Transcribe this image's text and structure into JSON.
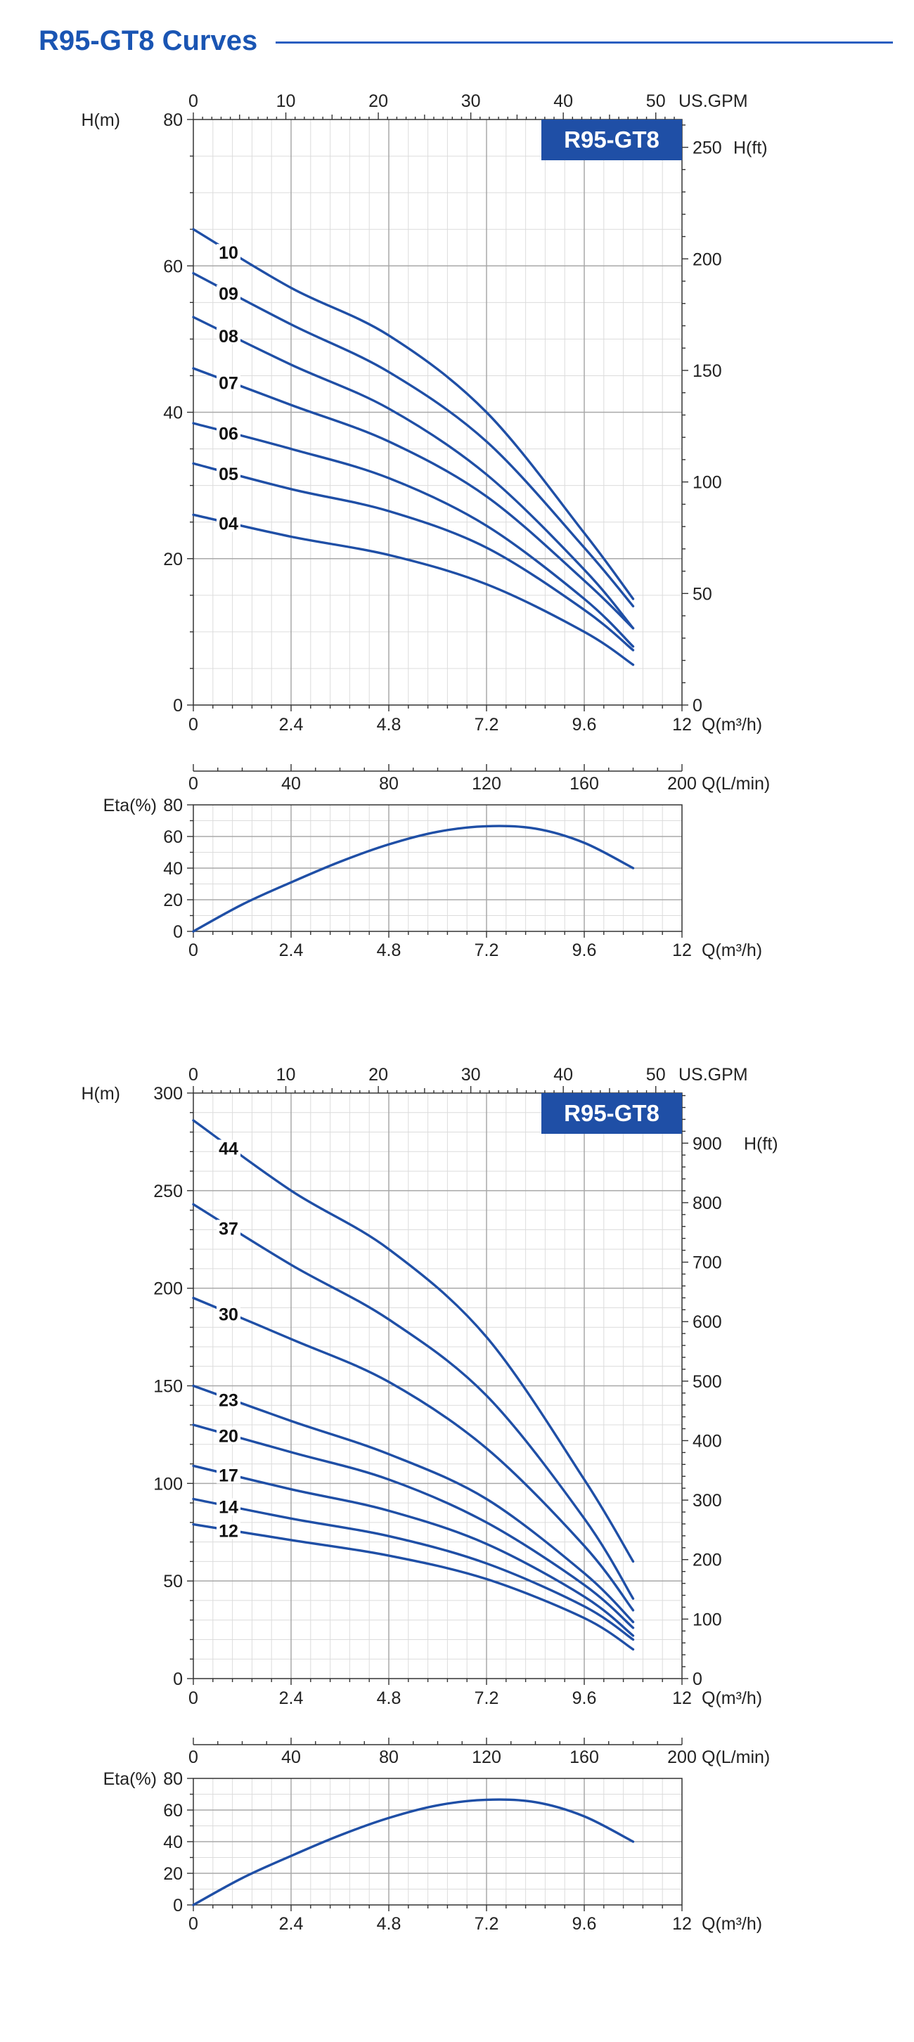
{
  "title": "R95-GT8 Curves",
  "colors": {
    "accent": "#1a55b3",
    "curve": "#1f4fa6",
    "badge": "#1f4fa6",
    "grid_major": "#a8a8a8",
    "grid_minor": "#dcdcdc"
  },
  "chart_data": [
    {
      "type": "line",
      "name": "head-curves-group-1",
      "badge": "R95-GT8",
      "ylabel": "H(m)",
      "y2label": "H(ft)",
      "xlabel": "Q(m³/h)",
      "x_top_label": "US.GPM",
      "xlim": [
        0,
        12
      ],
      "ylim": [
        0,
        80
      ],
      "y2lim": [
        0,
        262.47
      ],
      "xticks": [
        "0",
        "2.4",
        "4.8",
        "7.2",
        "9.6",
        "12"
      ],
      "x_top_ticks": [
        "0",
        "10",
        "20",
        "30",
        "40",
        "50"
      ],
      "yticks": [
        "0",
        "20",
        "40",
        "60",
        "80"
      ],
      "y2ticks": [
        "0",
        "50",
        "100",
        "150",
        "200",
        "250"
      ],
      "series": [
        {
          "name": "10",
          "x": [
            0,
            2.4,
            4.8,
            7.2,
            9.6,
            10.8
          ],
          "values": [
            65,
            57,
            50.5,
            40,
            23.5,
            14.5
          ]
        },
        {
          "name": "09",
          "x": [
            0,
            2.4,
            4.8,
            7.2,
            9.6,
            10.8
          ],
          "values": [
            59,
            52,
            45.5,
            36,
            21.5,
            13.5
          ]
        },
        {
          "name": "08",
          "x": [
            0,
            2.4,
            4.8,
            7.2,
            9.6,
            10.8
          ],
          "values": [
            53,
            46.5,
            40.5,
            31.5,
            18.5,
            10.5
          ]
        },
        {
          "name": "07",
          "x": [
            0,
            2.4,
            4.8,
            7.2,
            9.6,
            10.8
          ],
          "values": [
            46,
            41,
            36,
            28.5,
            17,
            10.5
          ]
        },
        {
          "name": "06",
          "x": [
            0,
            2.4,
            4.8,
            7.2,
            9.6,
            10.8
          ],
          "values": [
            38.5,
            35,
            31,
            24.5,
            14.5,
            8
          ]
        },
        {
          "name": "05",
          "x": [
            0,
            2.4,
            4.8,
            7.2,
            9.6,
            10.8
          ],
          "values": [
            33,
            29.5,
            26.5,
            21.5,
            13,
            7.5
          ]
        },
        {
          "name": "04",
          "x": [
            0,
            2.4,
            4.8,
            7.2,
            9.6,
            10.8
          ],
          "values": [
            26,
            23,
            20.5,
            16.5,
            10,
            5.5
          ]
        }
      ]
    },
    {
      "type": "line",
      "name": "efficiency-group-1",
      "ylabel": "Eta(%)",
      "xlabel": "Q(m³/h)",
      "x_top_label": "Q(L/min)",
      "xlim": [
        0,
        12
      ],
      "ylim": [
        0,
        80
      ],
      "xticks": [
        "0",
        "2.4",
        "4.8",
        "7.2",
        "9.6",
        "12"
      ],
      "x_top_ticks": [
        "0",
        "40",
        "80",
        "120",
        "160",
        "200"
      ],
      "yticks": [
        "0",
        "20",
        "40",
        "60",
        "80"
      ],
      "series": [
        {
          "name": "Eta",
          "x": [
            0,
            1.2,
            2.4,
            3.6,
            4.8,
            6.0,
            7.2,
            8.4,
            9.6,
            10.8
          ],
          "values": [
            0,
            17,
            31,
            44,
            55,
            63,
            66.5,
            65,
            56,
            40
          ]
        }
      ]
    },
    {
      "type": "line",
      "name": "head-curves-group-2",
      "badge": "R95-GT8",
      "ylabel": "H(m)",
      "y2label": "H(ft)",
      "xlabel": "Q(m³/h)",
      "x_top_label": "US.GPM",
      "xlim": [
        0,
        12
      ],
      "ylim": [
        0,
        300
      ],
      "y2lim": [
        0,
        984.25
      ],
      "xticks": [
        "0",
        "2.4",
        "4.8",
        "7.2",
        "9.6",
        "12"
      ],
      "x_top_ticks": [
        "0",
        "10",
        "20",
        "30",
        "40",
        "50"
      ],
      "yticks": [
        "0",
        "50",
        "100",
        "150",
        "200",
        "250",
        "300"
      ],
      "y2ticks": [
        "0",
        "100",
        "200",
        "300",
        "400",
        "500",
        "600",
        "700",
        "800",
        "900"
      ],
      "series": [
        {
          "name": "44",
          "x": [
            0,
            2.4,
            4.8,
            7.2,
            9.6,
            10.8
          ],
          "values": [
            286,
            250,
            220,
            175,
            102,
            60
          ]
        },
        {
          "name": "37",
          "x": [
            0,
            2.4,
            4.8,
            7.2,
            9.6,
            10.8
          ],
          "values": [
            243,
            212,
            184,
            145,
            82,
            41
          ]
        },
        {
          "name": "30",
          "x": [
            0,
            2.4,
            4.8,
            7.2,
            9.6,
            10.8
          ],
          "values": [
            195,
            174,
            152,
            118,
            68,
            35
          ]
        },
        {
          "name": "23",
          "x": [
            0,
            2.4,
            4.8,
            7.2,
            9.6,
            10.8
          ],
          "values": [
            150,
            132,
            115,
            92,
            54,
            29
          ]
        },
        {
          "name": "20",
          "x": [
            0,
            2.4,
            4.8,
            7.2,
            9.6,
            10.8
          ],
          "values": [
            130,
            116,
            102,
            80,
            48,
            26
          ]
        },
        {
          "name": "17",
          "x": [
            0,
            2.4,
            4.8,
            7.2,
            9.6,
            10.8
          ],
          "values": [
            109,
            97,
            86,
            69,
            42,
            22
          ]
        },
        {
          "name": "14",
          "x": [
            0,
            2.4,
            4.8,
            7.2,
            9.6,
            10.8
          ],
          "values": [
            92,
            82,
            73,
            59,
            37,
            20
          ]
        },
        {
          "name": "12",
          "x": [
            0,
            2.4,
            4.8,
            7.2,
            9.6,
            10.8
          ],
          "values": [
            79,
            71,
            63,
            51,
            31,
            15
          ]
        }
      ]
    },
    {
      "type": "line",
      "name": "efficiency-group-2",
      "ylabel": "Eta(%)",
      "xlabel": "Q(m³/h)",
      "x_top_label": "Q(L/min)",
      "xlim": [
        0,
        12
      ],
      "ylim": [
        0,
        80
      ],
      "xticks": [
        "0",
        "2.4",
        "4.8",
        "7.2",
        "9.6",
        "12"
      ],
      "x_top_ticks": [
        "0",
        "40",
        "80",
        "120",
        "160",
        "200"
      ],
      "yticks": [
        "0",
        "20",
        "40",
        "60",
        "80"
      ],
      "series": [
        {
          "name": "Eta",
          "x": [
            0,
            1.2,
            2.4,
            3.6,
            4.8,
            6.0,
            7.2,
            8.4,
            9.6,
            10.8
          ],
          "values": [
            0,
            17,
            31,
            44,
            55,
            63,
            66.5,
            65,
            56,
            40
          ]
        }
      ]
    }
  ]
}
